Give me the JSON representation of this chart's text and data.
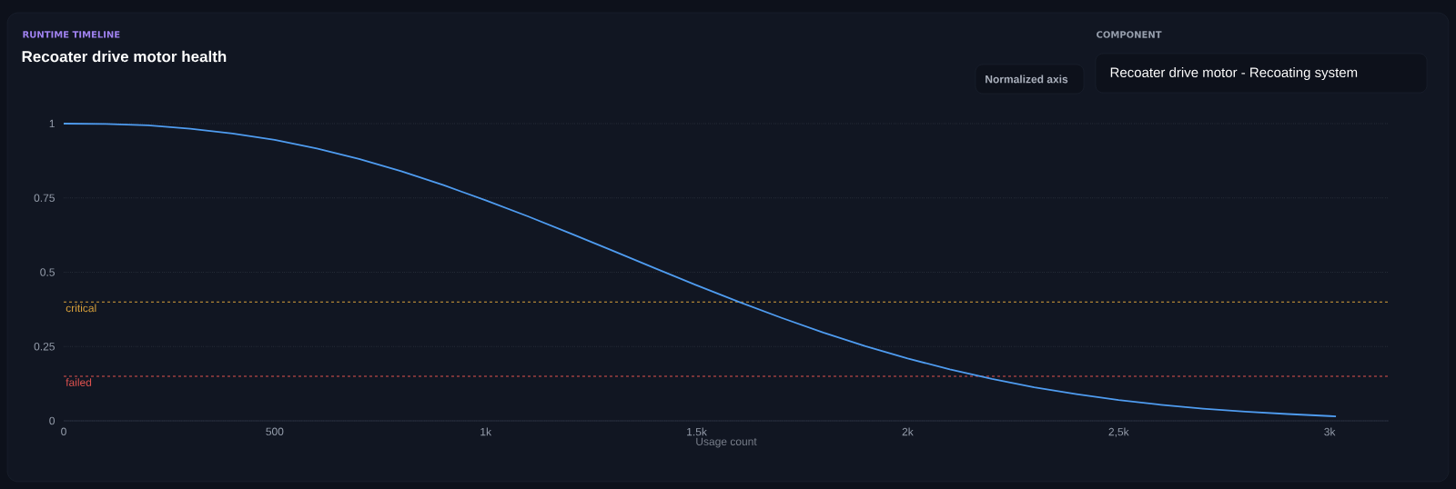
{
  "chart_data": {
    "type": "line",
    "subtitle": "RUNTIME TIMELINE",
    "title": "Recoater drive motor health",
    "xlabel": "Usage count",
    "annotations": [
      "COMPONENT",
      "Recoater drive motor - Recoating system",
      "Normalized axis"
    ],
    "x": [
      0,
      100,
      200,
      300,
      400,
      500,
      600,
      700,
      800,
      900,
      1000,
      1100,
      1200,
      1300,
      1400,
      1500,
      1600,
      1700,
      1800,
      1900,
      2000,
      2100,
      2200,
      2300,
      2400,
      2500,
      2600,
      2700,
      2800,
      2900,
      3000,
      3015
    ],
    "series": [
      {
        "color": "#4f9cf0",
        "values": [
          1,
          0.999,
          0.994,
          0.983,
          0.967,
          0.945,
          0.916,
          0.881,
          0.84,
          0.793,
          0.742,
          0.688,
          0.631,
          0.573,
          0.514,
          0.456,
          0.4,
          0.347,
          0.297,
          0.251,
          0.21,
          0.173,
          0.141,
          0.113,
          0.09,
          0.07,
          0.054,
          0.041,
          0.031,
          0.023,
          0.016,
          0.015
        ]
      }
    ],
    "xlim": [
      0,
      3140
    ],
    "ylim": [
      0,
      1
    ],
    "xticks": [
      0,
      500,
      {
        "value": 1000,
        "label": "1k"
      },
      {
        "value": 1500,
        "label": "1.5k"
      },
      {
        "value": 2000,
        "label": "2k"
      },
      {
        "value": 2500,
        "label": "2,5k"
      },
      {
        "value": 3000,
        "label": "3k"
      }
    ],
    "yticks": [
      0,
      0.25,
      0.5,
      0.75,
      1
    ],
    "ref_lines": [
      {
        "axis": "y",
        "value": 0.4,
        "label": "critical",
        "color": "#d9a13b",
        "line_style": "dashed"
      },
      {
        "axis": "y",
        "value": 0.15,
        "label": "failed",
        "color": "#e0524f",
        "line_style": "dashed"
      }
    ],
    "grid": "y",
    "marker": "none",
    "line_style": "solid"
  }
}
